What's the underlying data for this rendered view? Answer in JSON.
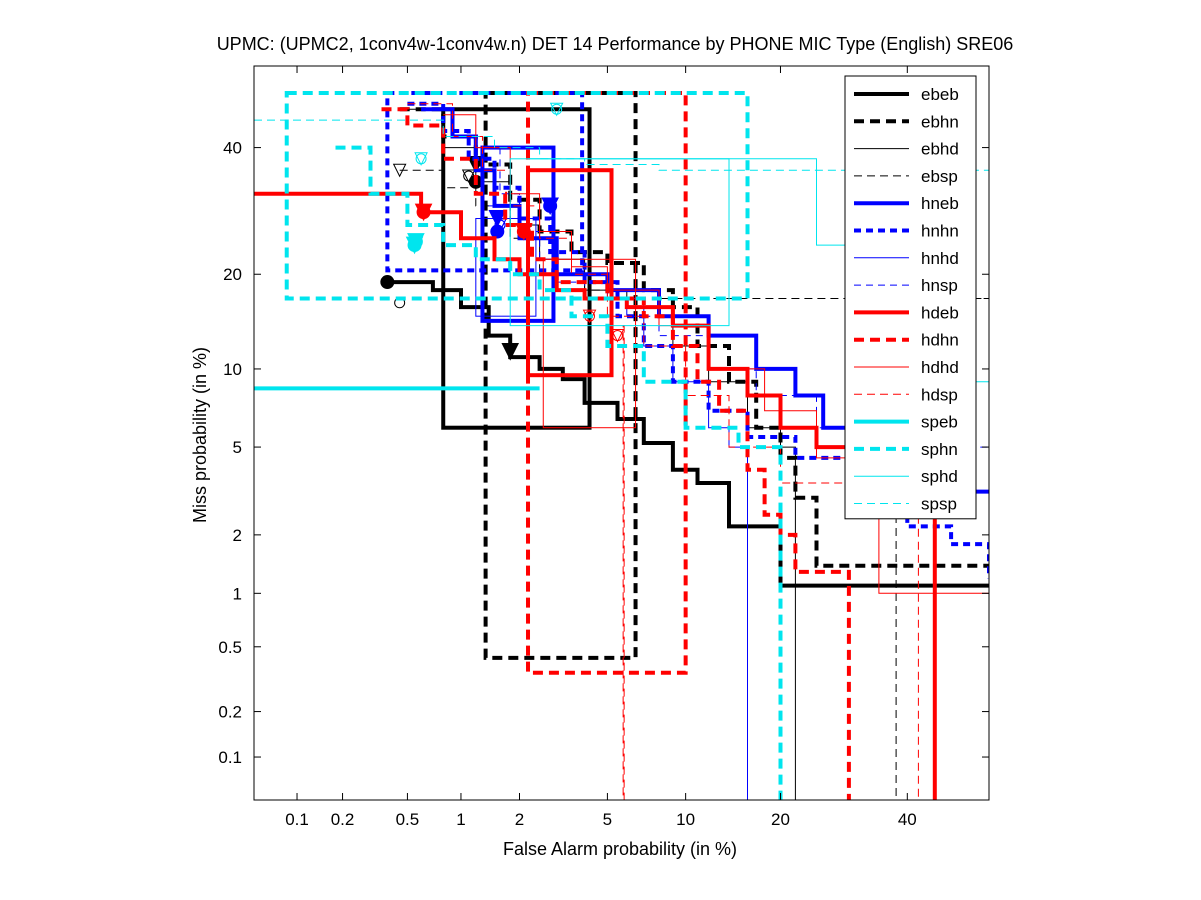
{
  "chart_data": {
    "type": "line",
    "title": "UPMC: (UPMC2, 1conv4w-1conv4w.n) DET 14 Performance by PHONE MIC Type (English) SRE06",
    "xlabel": "False Alarm probability (in %)",
    "ylabel": "Miss probability (in %)",
    "xscale": "probit",
    "yscale": "probit",
    "xlim": [
      0.05,
      55
    ],
    "ylim": [
      0.05,
      55
    ],
    "xticks": [
      0.1,
      0.2,
      0.5,
      1,
      2,
      5,
      10,
      20,
      40
    ],
    "xtick_labels": [
      "0.1",
      "0.2",
      "0.5",
      "1",
      "2",
      "5",
      "10",
      "20",
      "40"
    ],
    "yticks": [
      0.1,
      0.2,
      0.5,
      1,
      2,
      5,
      10,
      20,
      40
    ],
    "ytick_labels": [
      "0.1",
      "0.2",
      "0.5",
      "1",
      "2",
      "5",
      "10",
      "20",
      "40"
    ],
    "legend_position": "top-right",
    "series": [
      {
        "name": "ebeb",
        "color": "#000000",
        "width": 4,
        "dash": "solid",
        "points": [
          [
            0.38,
            19
          ],
          [
            0.7,
            18
          ],
          [
            1.0,
            16
          ],
          [
            1.4,
            13
          ],
          [
            1.8,
            11
          ],
          [
            2.5,
            10
          ],
          [
            3.2,
            9.2
          ],
          [
            4,
            7.5
          ],
          [
            5.5,
            6.5
          ],
          [
            7,
            5.2
          ],
          [
            9,
            4
          ],
          [
            11,
            3.5
          ],
          [
            14,
            2.2
          ],
          [
            20,
            2.2
          ],
          [
            20,
            1.1
          ],
          [
            55,
            1.1
          ]
        ],
        "actual": [
          1.8,
          11.5
        ],
        "mindcf": [
          0.38,
          19
        ],
        "box": [
          0.8,
          4.2,
          6,
          47
        ]
      },
      {
        "name": "ebhn",
        "color": "#000000",
        "width": 4,
        "dash": "10,6",
        "points": [
          [
            0.45,
            47
          ],
          [
            0.8,
            42
          ],
          [
            1.2,
            37
          ],
          [
            1.8,
            31
          ],
          [
            2.5,
            26
          ],
          [
            3.5,
            23
          ],
          [
            5,
            21.5
          ],
          [
            7,
            18
          ],
          [
            9,
            16
          ],
          [
            11,
            12
          ],
          [
            14,
            9
          ],
          [
            17,
            6
          ],
          [
            20,
            4.5
          ],
          [
            22,
            3
          ],
          [
            25,
            1.4
          ],
          [
            55,
            1.4
          ]
        ],
        "actual": [
          1.2,
          37
        ],
        "mindcf": [
          1.2,
          34
        ],
        "box": [
          1.35,
          6.5,
          0.43,
          50
        ]
      },
      {
        "name": "ebhd",
        "color": "#000000",
        "width": 1,
        "dash": "solid",
        "points": [
          [
            0.5,
            47
          ],
          [
            0.8,
            40
          ],
          [
            1.2,
            34
          ],
          [
            1.8,
            27
          ],
          [
            2.5,
            22
          ],
          [
            4,
            18
          ],
          [
            6,
            16
          ],
          [
            9,
            12
          ],
          [
            12,
            9
          ],
          [
            16,
            6
          ],
          [
            20,
            5
          ],
          [
            22,
            0.05
          ]
        ],
        "actual": [
          1.1,
          35
        ],
        "mindcf": [
          1.1,
          35
        ],
        "box": null
      },
      {
        "name": "ebsp",
        "color": "#000000",
        "width": 1,
        "dash": "8,5",
        "points": [
          [
            0.45,
            36
          ],
          [
            0.8,
            33
          ],
          [
            1.2,
            30
          ],
          [
            1.8,
            25
          ],
          [
            2.5,
            20
          ],
          [
            4,
            18
          ],
          [
            8,
            17
          ],
          [
            15,
            17
          ],
          [
            55,
            17
          ],
          [
            38,
            17
          ],
          [
            38,
            0.05
          ]
        ],
        "actual": [
          0.45,
          36
        ],
        "mindcf": [
          0.45,
          16.5
        ],
        "box": null
      },
      {
        "name": "hneb",
        "color": "#0000ff",
        "width": 4,
        "dash": "solid",
        "points": [
          [
            0.6,
            47
          ],
          [
            0.9,
            42
          ],
          [
            1.2,
            36
          ],
          [
            1.5,
            30
          ],
          [
            2,
            25
          ],
          [
            3,
            20
          ],
          [
            5,
            18
          ],
          [
            8,
            15
          ],
          [
            12,
            13
          ],
          [
            17,
            10
          ],
          [
            22,
            8
          ],
          [
            26,
            6
          ],
          [
            30,
            4.5
          ],
          [
            40,
            3.5
          ],
          [
            45,
            3.2
          ],
          [
            55,
            3.2
          ]
        ],
        "actual": [
          1.55,
          28
        ],
        "mindcf": [
          1.55,
          26
        ],
        "box": [
          1.3,
          2.9,
          14.5,
          40
        ]
      },
      {
        "name": "hnhn",
        "color": "#0000ff",
        "width": 4,
        "dash": "7,5",
        "points": [
          [
            0.5,
            48
          ],
          [
            0.8,
            43
          ],
          [
            1.1,
            38
          ],
          [
            1.5,
            33
          ],
          [
            2,
            28
          ],
          [
            2.8,
            23
          ],
          [
            4,
            19
          ],
          [
            5.5,
            15
          ],
          [
            7,
            12
          ],
          [
            9,
            9
          ],
          [
            12,
            7
          ],
          [
            16,
            5.5
          ],
          [
            22,
            4.5
          ],
          [
            30,
            3.5
          ],
          [
            40,
            2.2
          ],
          [
            48,
            1.8
          ],
          [
            55,
            1.2
          ]
        ],
        "actual": [
          2.8,
          30
        ],
        "mindcf": [
          2.8,
          30
        ],
        "box": [
          0.38,
          3.9,
          20.5,
          50
        ]
      },
      {
        "name": "hnhd",
        "color": "#0000ff",
        "width": 1,
        "dash": "solid",
        "points": [
          [
            1.4,
            30
          ],
          [
            2,
            25
          ],
          [
            3,
            20
          ],
          [
            5,
            17
          ],
          [
            7,
            12
          ],
          [
            9,
            9
          ],
          [
            12,
            6
          ],
          [
            14,
            5
          ],
          [
            16,
            5
          ],
          [
            16,
            0.05
          ]
        ],
        "actual": [
          1.6,
          27
        ],
        "mindcf": [
          1.6,
          27
        ],
        "box": [
          1.2,
          2.4,
          15,
          28
        ]
      },
      {
        "name": "hnsp",
        "color": "#0000ff",
        "width": 1,
        "dash": "7,5",
        "points": [
          [
            1.2,
            40
          ],
          [
            1.6,
            32
          ],
          [
            2,
            26
          ],
          [
            2.5,
            22
          ],
          [
            3,
            19
          ],
          [
            4,
            17
          ],
          [
            6,
            15
          ],
          [
            8,
            13
          ],
          [
            12,
            10
          ],
          [
            17,
            8
          ],
          [
            25,
            6
          ],
          [
            40,
            5
          ],
          [
            55,
            5
          ]
        ],
        "actual": [
          1.6,
          27
        ],
        "mindcf": [
          1.6,
          27
        ],
        "box": null
      },
      {
        "name": "hdeb",
        "color": "#ff0000",
        "width": 4,
        "dash": "solid",
        "points": [
          [
            0.05,
            32
          ],
          [
            0.4,
            32
          ],
          [
            0.6,
            29
          ],
          [
            1.0,
            25
          ],
          [
            1.5,
            22
          ],
          [
            2,
            20
          ],
          [
            3,
            18
          ],
          [
            4,
            17
          ],
          [
            6,
            16
          ],
          [
            9,
            14
          ],
          [
            12,
            10
          ],
          [
            16,
            8
          ],
          [
            20,
            6
          ],
          [
            25,
            5
          ],
          [
            40,
            5
          ],
          [
            45,
            4.5
          ],
          [
            45,
            0.05
          ]
        ],
        "actual": [
          0.62,
          29
        ],
        "mindcf": [
          0.62,
          29
        ],
        "box": [
          2.2,
          5.2,
          9.5,
          36
        ]
      },
      {
        "name": "hdhn",
        "color": "#ff0000",
        "width": 4,
        "dash": "10,6",
        "points": [
          [
            0.35,
            47
          ],
          [
            0.5,
            44
          ],
          [
            0.8,
            38
          ],
          [
            1.2,
            32
          ],
          [
            1.7,
            27
          ],
          [
            2.3,
            22
          ],
          [
            3,
            19
          ],
          [
            5,
            17
          ],
          [
            7,
            15
          ],
          [
            9,
            12
          ],
          [
            11,
            9
          ],
          [
            13,
            7
          ],
          [
            16,
            4
          ],
          [
            18,
            2.5
          ],
          [
            20,
            2
          ],
          [
            22,
            1.3
          ],
          [
            30,
            1.3
          ],
          [
            30,
            0.05
          ]
        ],
        "actual": [
          2.1,
          26
        ],
        "mindcf": [
          2.1,
          26
        ],
        "box": [
          2.2,
          10,
          0.35,
          50
        ]
      },
      {
        "name": "hdhd",
        "color": "#ff0000",
        "width": 1,
        "dash": "solid",
        "points": [
          [
            0.8,
            46
          ],
          [
            1.2,
            40
          ],
          [
            1.8,
            32
          ],
          [
            2.5,
            26
          ],
          [
            3.5,
            21
          ],
          [
            5,
            18
          ],
          [
            8,
            14
          ],
          [
            12,
            10
          ],
          [
            18,
            7
          ],
          [
            25,
            4.5
          ],
          [
            30,
            3
          ],
          [
            35,
            1.0
          ],
          [
            55,
            1.0
          ]
        ],
        "actual": [
          5.5,
          13
        ],
        "mindcf": [
          5.5,
          13
        ],
        "box": [
          2.6,
          6.5,
          6,
          22
        ]
      },
      {
        "name": "hdsp",
        "color": "#ff0000",
        "width": 1,
        "dash": "8,5",
        "points": [
          [
            0.5,
            48
          ],
          [
            0.9,
            42
          ],
          [
            1.3,
            36
          ],
          [
            1.8,
            30
          ],
          [
            2.5,
            25
          ],
          [
            3.5,
            20
          ],
          [
            5,
            15
          ],
          [
            7,
            12
          ],
          [
            10,
            8
          ],
          [
            14,
            5
          ],
          [
            20,
            3.5
          ],
          [
            30,
            3
          ],
          [
            42,
            3
          ],
          [
            42,
            0.05
          ]
        ],
        "actual": [
          4.2,
          15
        ],
        "mindcf": [
          4.2,
          15
        ],
        "box": [
          5.8,
          5.8,
          0.05,
          14
        ]
      },
      {
        "name": "speb",
        "color": "#00e5ee",
        "width": 4,
        "dash": "solid",
        "points": [
          [
            0.05,
            8.5
          ],
          [
            2.5,
            8.5
          ],
          [
            2.5,
            8.5
          ]
        ],
        "actual": [
          0.55,
          24
        ],
        "mindcf": [
          0.55,
          24
        ],
        "box": null
      },
      {
        "name": "sphn",
        "color": "#00e5ee",
        "width": 4,
        "dash": "10,6",
        "points": [
          [
            0.18,
            40
          ],
          [
            0.3,
            32
          ],
          [
            0.5,
            27
          ],
          [
            0.8,
            24
          ],
          [
            1.2,
            22
          ],
          [
            1.8,
            20
          ],
          [
            2.5,
            18
          ],
          [
            3.5,
            15
          ],
          [
            5,
            12
          ],
          [
            7,
            9
          ],
          [
            10,
            6
          ],
          [
            15,
            5
          ],
          [
            20,
            5
          ],
          [
            20,
            0.05
          ]
        ],
        "actual": [
          0.56,
          24.5
        ],
        "mindcf": [
          0.56,
          24.5
        ],
        "box": [
          0.085,
          16,
          17,
          50
        ]
      },
      {
        "name": "sphd",
        "color": "#00e5ee",
        "width": 1,
        "dash": "solid",
        "points": [
          [
            2.2,
            38
          ],
          [
            6,
            38
          ],
          [
            15,
            38
          ],
          [
            25,
            38
          ],
          [
            25,
            24
          ],
          [
            30,
            20
          ],
          [
            35,
            16
          ],
          [
            42,
            12
          ],
          [
            48,
            9
          ],
          [
            55,
            9
          ]
        ],
        "actual": [
          3.0,
          47
        ],
        "mindcf": [
          3.0,
          47
        ],
        "box": [
          1.8,
          14,
          14,
          38
        ]
      },
      {
        "name": "spsp",
        "color": "#00e5ee",
        "width": 1,
        "dash": "8,5",
        "points": [
          [
            0.05,
            45
          ],
          [
            0.5,
            45
          ],
          [
            0.8,
            42
          ],
          [
            1.5,
            40
          ],
          [
            2.5,
            38
          ],
          [
            4,
            37
          ],
          [
            8,
            36
          ],
          [
            20,
            36
          ],
          [
            40,
            36
          ],
          [
            55,
            36
          ]
        ],
        "actual": [
          0.6,
          38
        ],
        "mindcf": [
          0.6,
          38
        ],
        "box": null
      }
    ]
  }
}
